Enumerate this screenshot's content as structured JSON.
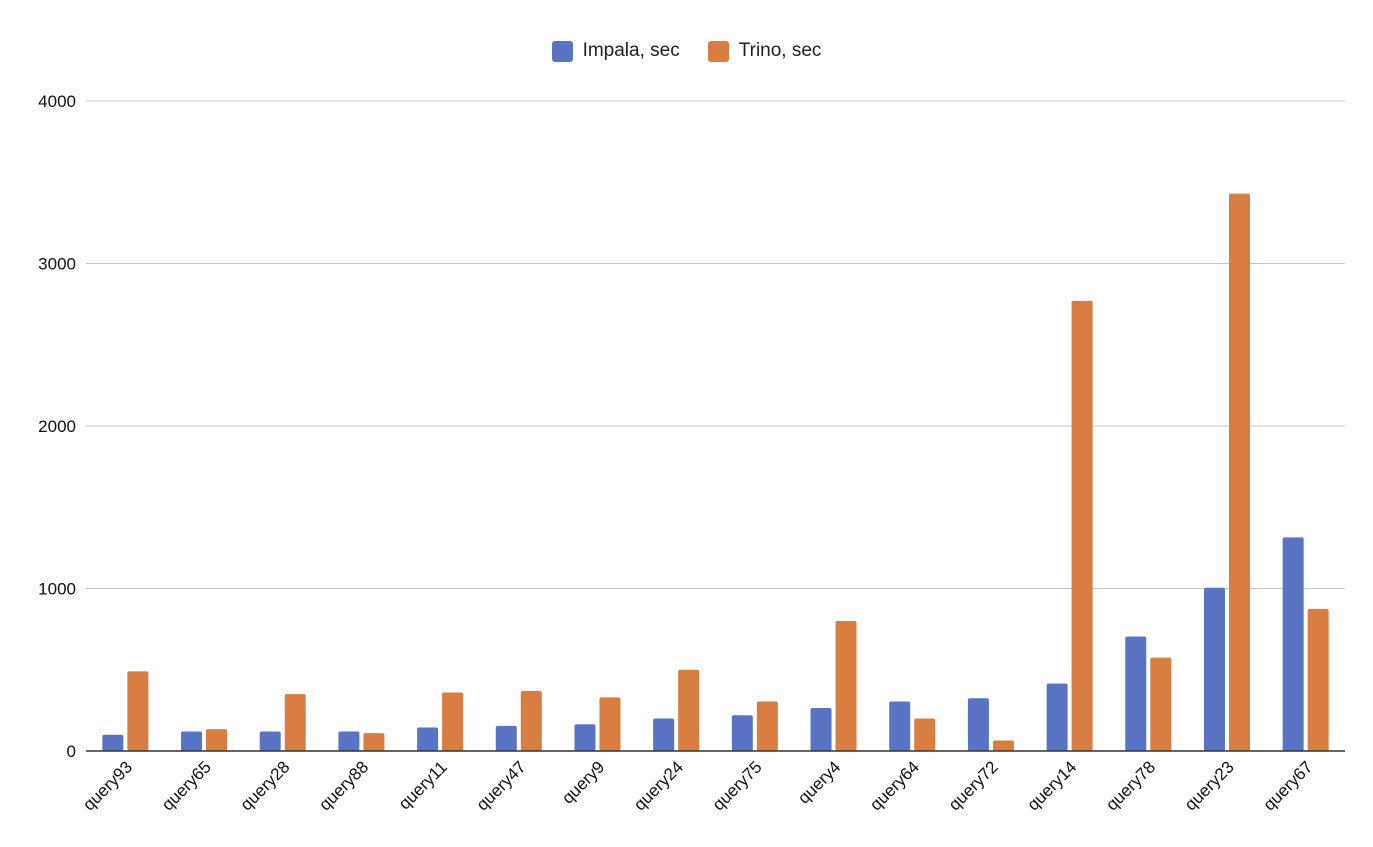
{
  "chart_data": {
    "type": "bar",
    "categories": [
      "query93",
      "query65",
      "query28",
      "query88",
      "query11",
      "query47",
      "query9",
      "query24",
      "query75",
      "query4",
      "query64",
      "query72",
      "query14",
      "query78",
      "query23",
      "query67"
    ],
    "series": [
      {
        "name": "Impala, sec",
        "color": "#5874c3",
        "values": [
          100,
          120,
          120,
          120,
          145,
          155,
          165,
          200,
          220,
          265,
          305,
          325,
          415,
          705,
          1005,
          1315
        ]
      },
      {
        "name": "Trino, sec",
        "color": "#d87e43",
        "values": [
          490,
          135,
          350,
          110,
          360,
          370,
          330,
          500,
          305,
          800,
          200,
          65,
          2770,
          575,
          3430,
          875
        ]
      }
    ],
    "ylim": [
      0,
      4000
    ],
    "yticks": [
      0,
      1000,
      2000,
      3000,
      4000
    ],
    "grid": true,
    "legend": "top-center",
    "title": "",
    "xlabel": "",
    "ylabel": ""
  }
}
